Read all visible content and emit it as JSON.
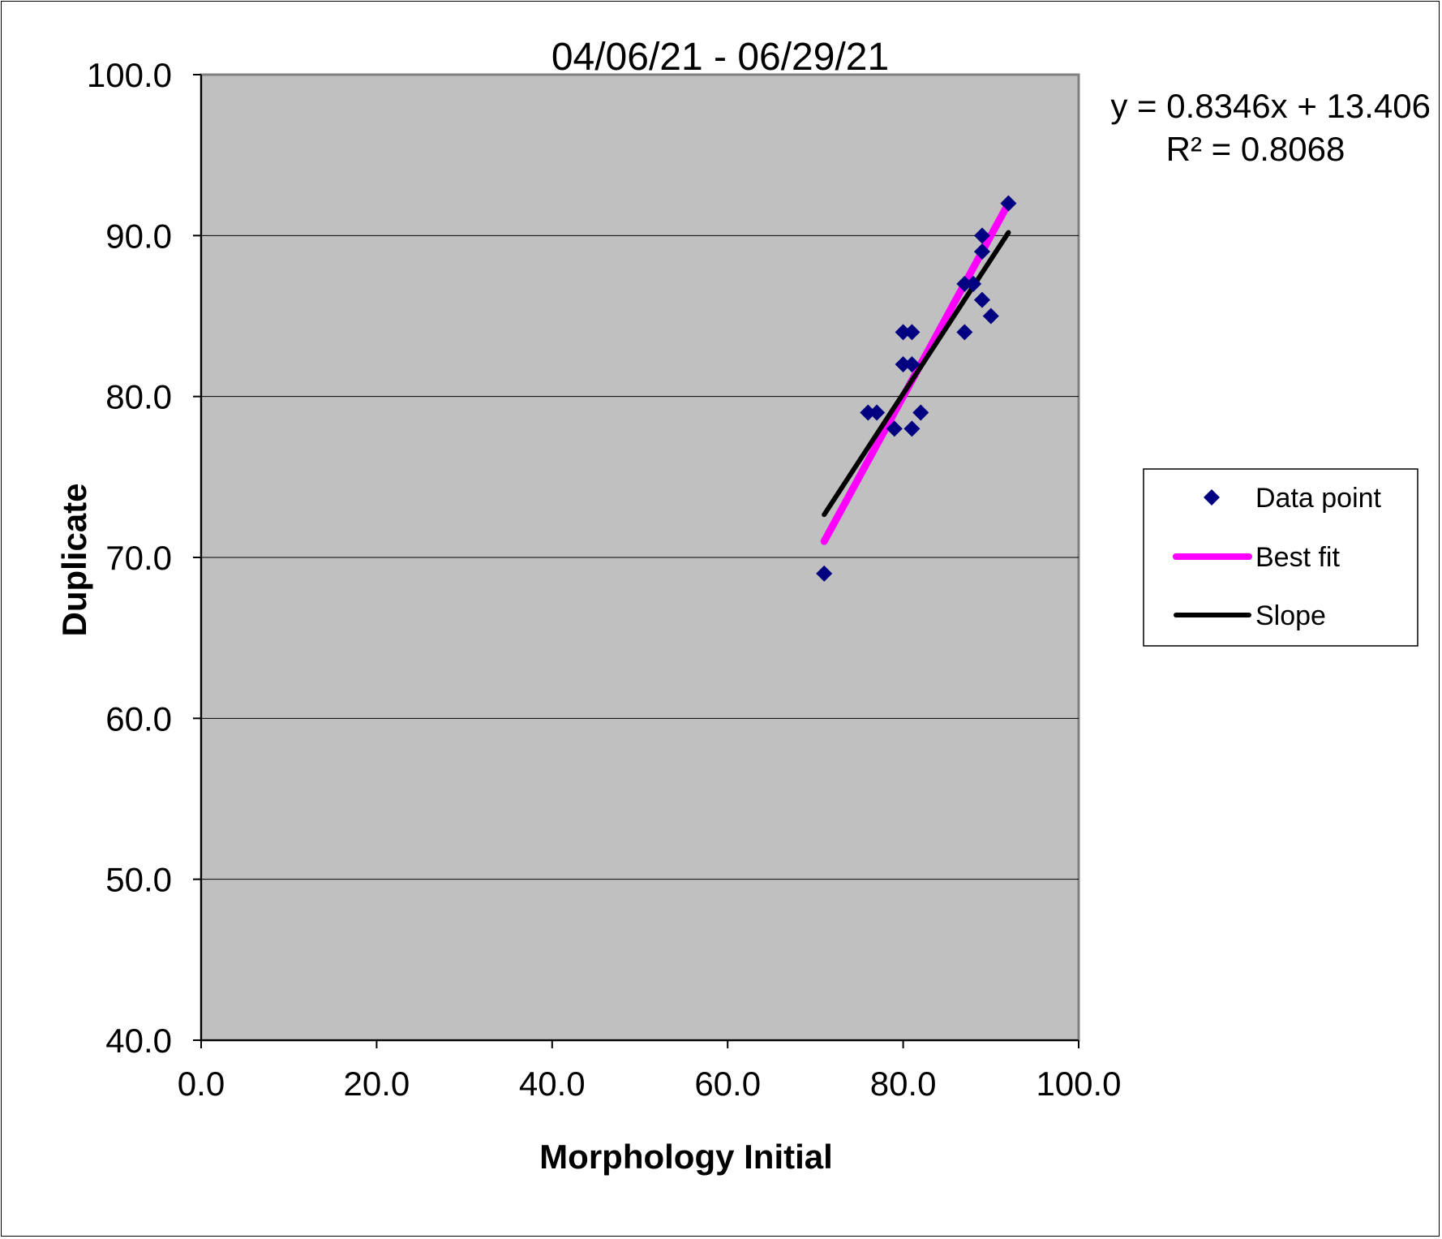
{
  "chart_data": {
    "type": "scatter",
    "title": "04/06/21 - 06/29/21",
    "xlabel": "Morphology Initial",
    "ylabel": "Duplicate",
    "xlim": [
      0,
      100
    ],
    "ylim": [
      40,
      100
    ],
    "x_ticks": [
      "0.0",
      "20.0",
      "40.0",
      "60.0",
      "80.0",
      "100.0"
    ],
    "y_ticks": [
      "100.0",
      "90.0",
      "80.0",
      "70.0",
      "60.0",
      "50.0",
      "40.0"
    ],
    "grid": "horizontal",
    "plot_background": "#c0c0c0",
    "legend_position": "right",
    "series": [
      {
        "name": "Data point",
        "kind": "scatter",
        "marker": "diamond",
        "color": "#000080",
        "points": [
          [
            71,
            69
          ],
          [
            76,
            79
          ],
          [
            77,
            79
          ],
          [
            79,
            78
          ],
          [
            80,
            84
          ],
          [
            80,
            82
          ],
          [
            81,
            84
          ],
          [
            81,
            82
          ],
          [
            81,
            78
          ],
          [
            82,
            79
          ],
          [
            87,
            87
          ],
          [
            87,
            84
          ],
          [
            88,
            87
          ],
          [
            89,
            90
          ],
          [
            89,
            89
          ],
          [
            89,
            86
          ],
          [
            90,
            85
          ],
          [
            92,
            92
          ]
        ]
      },
      {
        "name": "Best fit",
        "kind": "line",
        "color": "#ff00ff",
        "points": [
          [
            71,
            71
          ],
          [
            92,
            92
          ]
        ]
      },
      {
        "name": "Slope",
        "kind": "line",
        "color": "#000000",
        "points": [
          [
            71,
            72.66
          ],
          [
            92,
            90.19
          ]
        ]
      }
    ],
    "annotations": {
      "equation": "y = 0.8346x + 13.406",
      "r_squared": "R² = 0.8068"
    }
  }
}
